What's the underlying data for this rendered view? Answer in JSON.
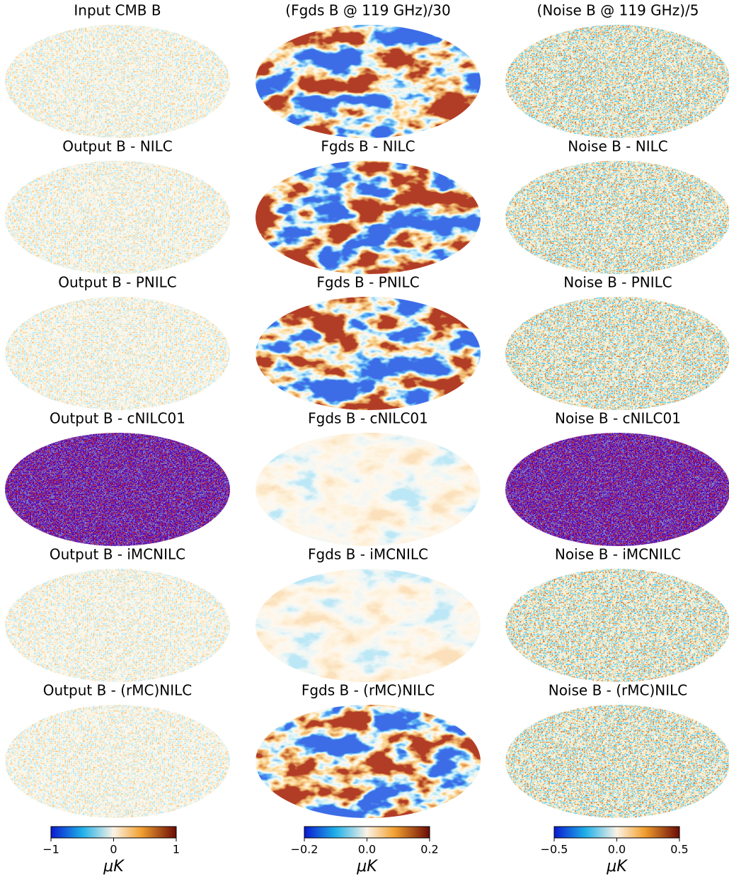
{
  "panels": [
    {
      "title": "Input CMB B"
    },
    {
      "title": "(Fgds B @ 119 GHz)/30"
    },
    {
      "title": "(Noise B @ 119 GHz)/5"
    },
    {
      "title": "Output B - NILC"
    },
    {
      "title": "Fgds B - NILC"
    },
    {
      "title": "Noise B - NILC"
    },
    {
      "title": "Output B - PNILC"
    },
    {
      "title": "Fgds B - PNILC"
    },
    {
      "title": "Noise B - PNILC"
    },
    {
      "title": "Output B - cNILC01"
    },
    {
      "title": "Fgds B - cNILC01"
    },
    {
      "title": "Noise B - cNILC01"
    },
    {
      "title": "Output B - iMCNILC"
    },
    {
      "title": "Fgds B - iMCNILC"
    },
    {
      "title": "Noise B - iMCNILC"
    },
    {
      "title": "Output B - (rMC)NILC"
    },
    {
      "title": "Fgds B - (rMC)NILC"
    },
    {
      "title": "Noise B - (rMC)NILC"
    }
  ],
  "colorbars": [
    {
      "range": [
        -1,
        1
      ],
      "ticks": [
        {
          "value": -1,
          "label": "−1"
        },
        0,
        1
      ],
      "unit": "μK"
    },
    {
      "range": [
        -0.2,
        0.2
      ],
      "ticks": [
        {
          "value": -0.2,
          "label": "−0.2"
        },
        {
          "value": 0,
          "label": "0.0"
        },
        0.2
      ],
      "unit": "μK"
    },
    {
      "range": [
        -0.5,
        0.5
      ],
      "ticks": [
        {
          "value": -0.5,
          "label": "−0.5"
        },
        {
          "value": 0,
          "label": "0.0"
        },
        0.5
      ],
      "unit": "μK"
    }
  ]
}
